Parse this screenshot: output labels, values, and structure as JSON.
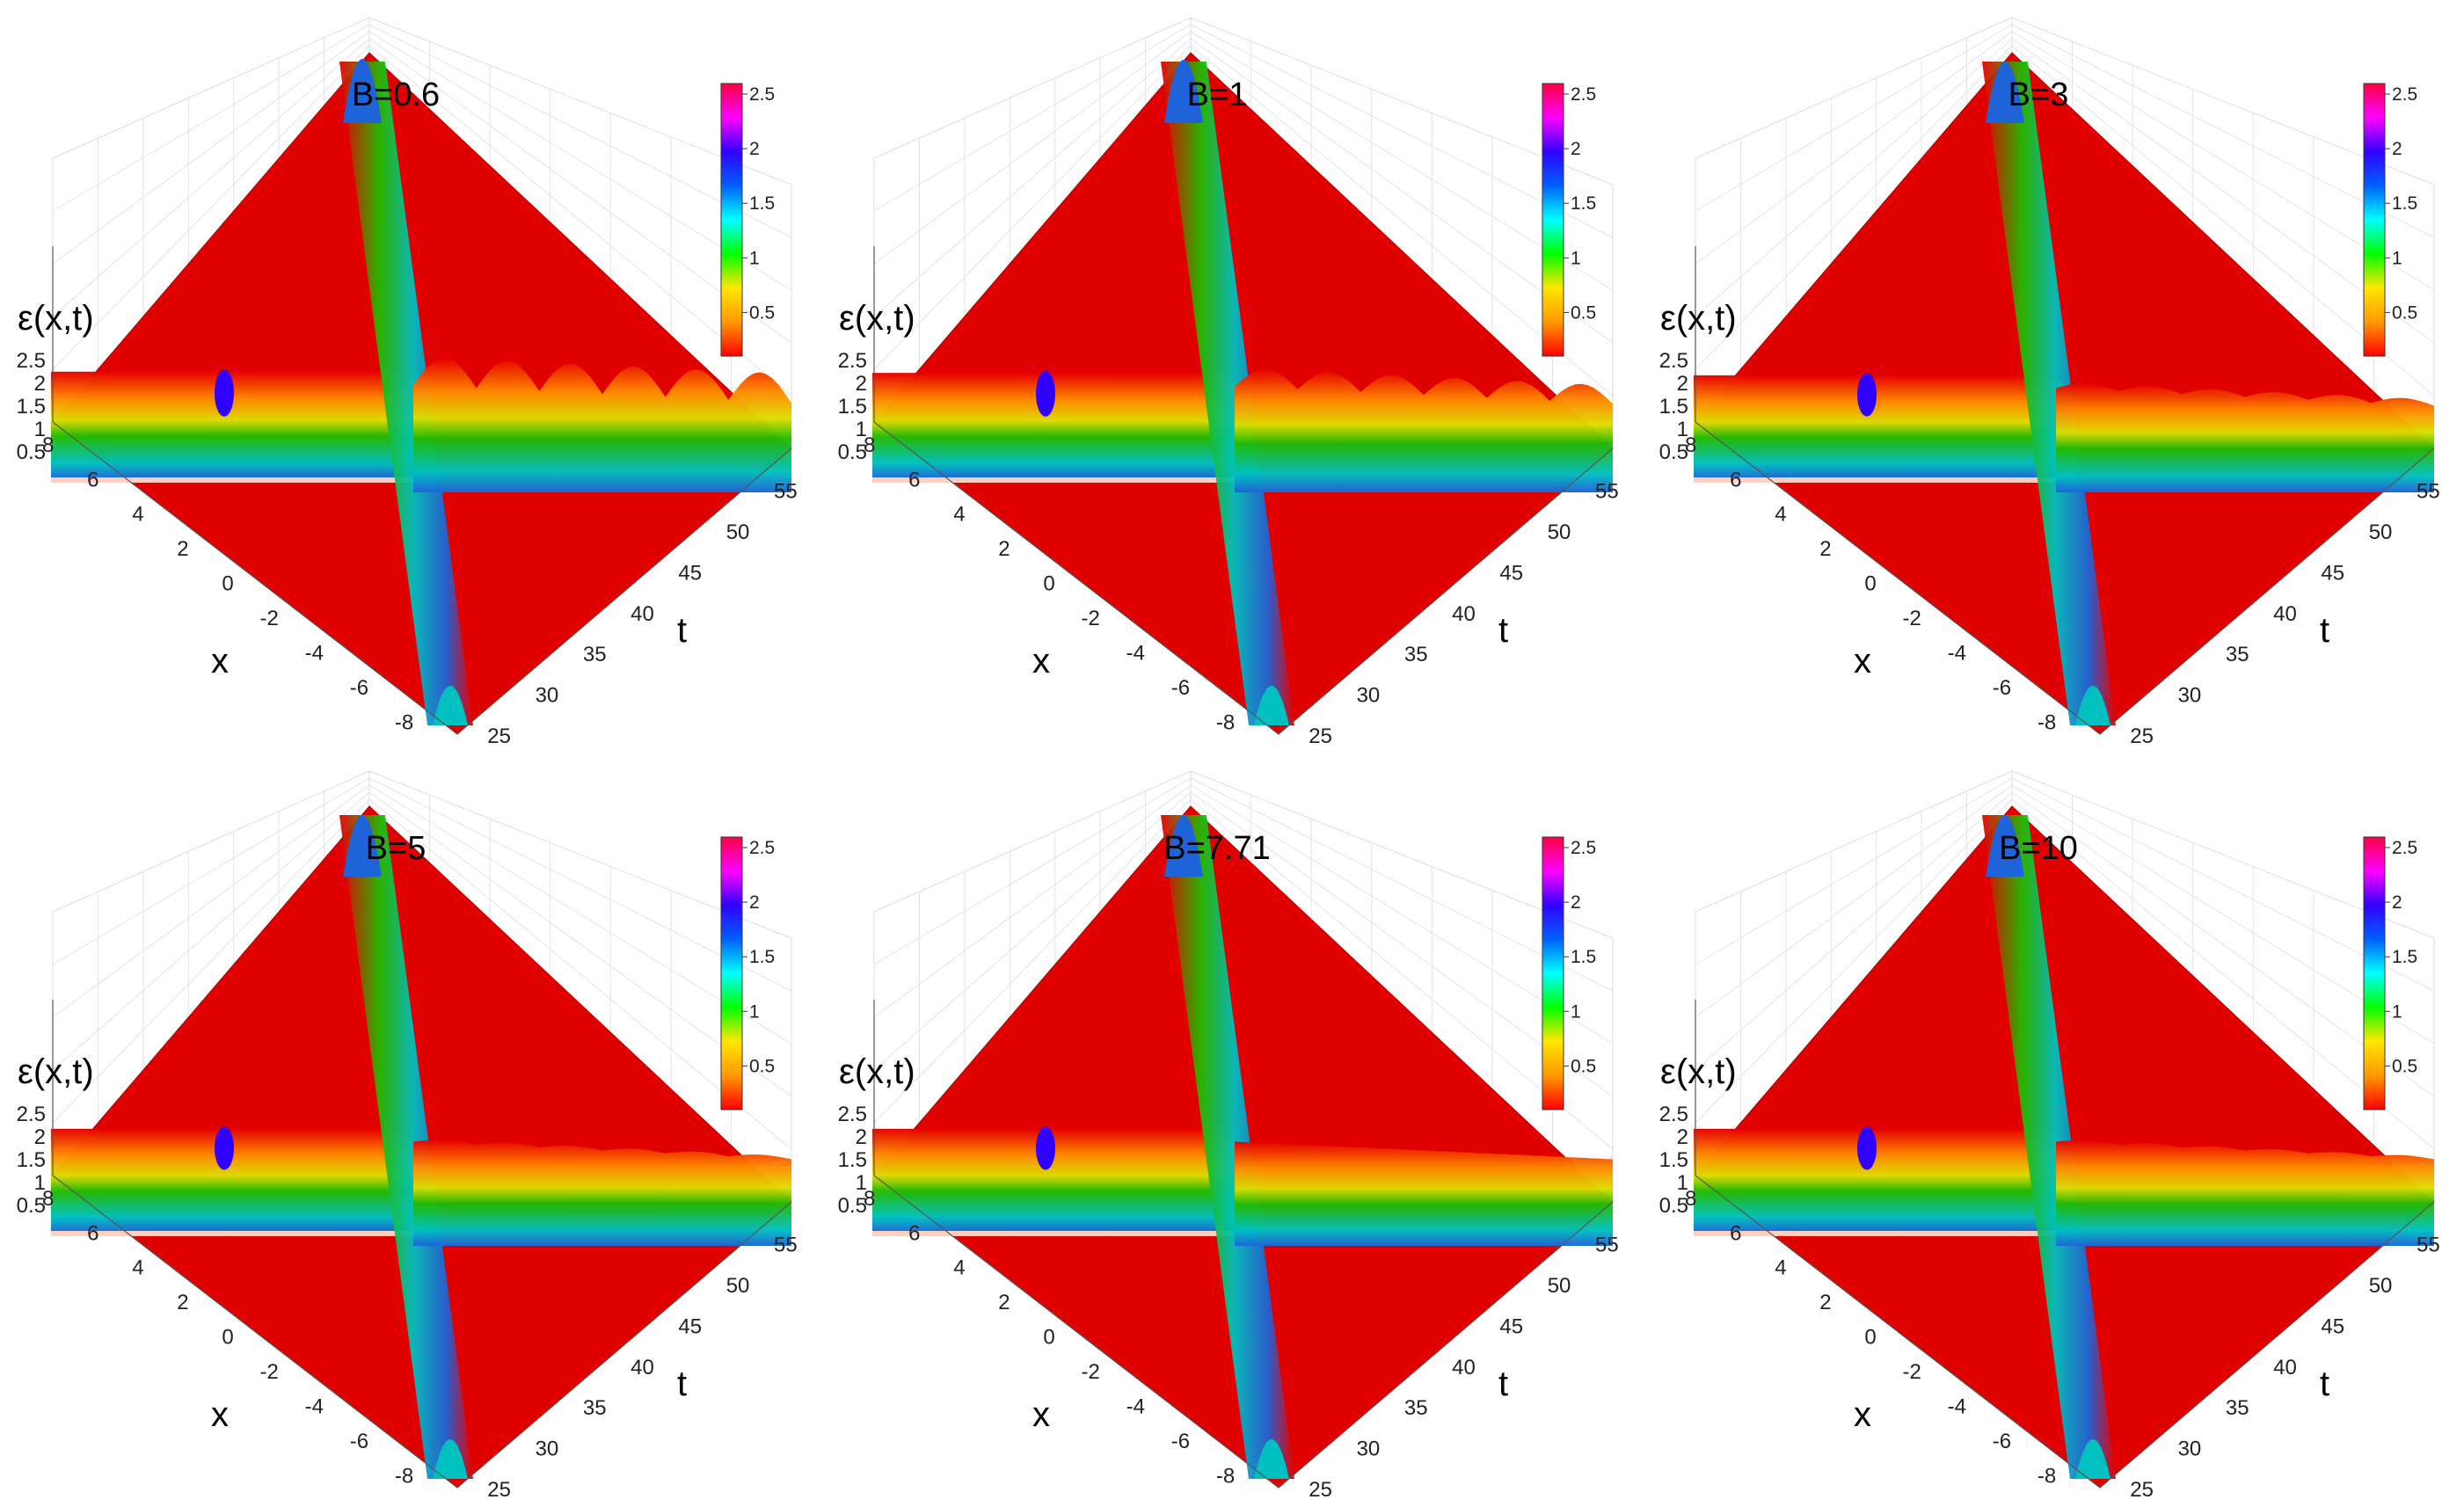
{
  "figure": {
    "colormap": [
      "#ff0000",
      "#ff9900",
      "#ffe600",
      "#00ff00",
      "#00ffff",
      "#0060ff",
      "#3000ff",
      "#ff00ff",
      "#ff0040"
    ],
    "surface_base_color": "#e00000",
    "soliton_colors": [
      "#e60000",
      "#22bb00",
      "#00c0c0",
      "#1e64d8"
    ]
  },
  "chart_data": [
    {
      "type": "surface3d",
      "title": "B=0.6",
      "B": 0.6,
      "zlabel": "ε(x,t)",
      "xlabel": "x",
      "ylabel": "t",
      "x_ticks": [
        "8",
        "6",
        "4",
        "2",
        "0",
        "-2",
        "-4",
        "-6",
        "-8"
      ],
      "t_ticks": [
        "25",
        "30",
        "35",
        "40",
        "45",
        "50",
        "55"
      ],
      "z_ticks": [
        "2.5",
        "2",
        "1.5",
        "1",
        "0.5"
      ],
      "colorbar_ticks": [
        "2.5",
        "2",
        "1.5",
        "1",
        "0.5"
      ],
      "xlim": [
        -8,
        8
      ],
      "tlim": [
        25,
        55
      ],
      "zlim": [
        0,
        2.5
      ],
      "clim": [
        0,
        2.5
      ],
      "peak": 1.9,
      "oscillation": 0.55,
      "grid": true
    },
    {
      "type": "surface3d",
      "title": "B=1",
      "B": 1,
      "zlabel": "ε(x,t)",
      "xlabel": "x",
      "ylabel": "t",
      "x_ticks": [
        "8",
        "6",
        "4",
        "2",
        "0",
        "-2",
        "-4",
        "-6",
        "-8"
      ],
      "t_ticks": [
        "25",
        "30",
        "35",
        "40",
        "45",
        "50",
        "55"
      ],
      "z_ticks": [
        "2.5",
        "2",
        "1.5",
        "1",
        "0.5"
      ],
      "colorbar_ticks": [
        "2.5",
        "2",
        "1.5",
        "1",
        "0.5"
      ],
      "xlim": [
        -8,
        8
      ],
      "tlim": [
        25,
        55
      ],
      "zlim": [
        0,
        2.5
      ],
      "clim": [
        0,
        2.5
      ],
      "peak": 1.85,
      "oscillation": 0.35,
      "grid": true
    },
    {
      "type": "surface3d",
      "title": "B=3",
      "B": 3,
      "zlabel": "ε(x,t)",
      "xlabel": "x",
      "ylabel": "t",
      "x_ticks": [
        "8",
        "6",
        "4",
        "2",
        "0",
        "-2",
        "-4",
        "-6",
        "-8"
      ],
      "t_ticks": [
        "25",
        "30",
        "35",
        "40",
        "45",
        "50",
        "55"
      ],
      "z_ticks": [
        "2.5",
        "2",
        "1.5",
        "1",
        "0.5"
      ],
      "colorbar_ticks": [
        "2.5",
        "2",
        "1.5",
        "1",
        "0.5"
      ],
      "xlim": [
        -8,
        8
      ],
      "tlim": [
        25,
        55
      ],
      "zlim": [
        0,
        2.5
      ],
      "clim": [
        0,
        2.5
      ],
      "peak": 1.75,
      "oscillation": 0.12,
      "grid": true
    },
    {
      "type": "surface3d",
      "title": "B=5",
      "B": 5,
      "zlabel": "ε(x,t)",
      "xlabel": "x",
      "ylabel": "t",
      "x_ticks": [
        "8",
        "6",
        "4",
        "2",
        "0",
        "-2",
        "-4",
        "-6",
        "-8"
      ],
      "t_ticks": [
        "25",
        "30",
        "35",
        "40",
        "45",
        "50",
        "55"
      ],
      "z_ticks": [
        "2.5",
        "2",
        "1.5",
        "1",
        "0.5"
      ],
      "colorbar_ticks": [
        "2.5",
        "2",
        "1.5",
        "1",
        "0.5"
      ],
      "xlim": [
        -8,
        8
      ],
      "tlim": [
        25,
        55
      ],
      "zlim": [
        0,
        2.5
      ],
      "clim": [
        0,
        2.5
      ],
      "peak": 1.75,
      "oscillation": 0.06,
      "grid": true
    },
    {
      "type": "surface3d",
      "title": "B=7.71",
      "B": 7.71,
      "zlabel": "ε(x,t)",
      "xlabel": "x",
      "ylabel": "t",
      "x_ticks": [
        "8",
        "6",
        "4",
        "2",
        "0",
        "-2",
        "-4",
        "-6",
        "-8"
      ],
      "t_ticks": [
        "25",
        "30",
        "35",
        "40",
        "45",
        "50",
        "55"
      ],
      "z_ticks": [
        "2.5",
        "2",
        "1.5",
        "1",
        "0.5"
      ],
      "colorbar_ticks": [
        "2.5",
        "2",
        "1.5",
        "1",
        "0.5"
      ],
      "xlim": [
        -8,
        8
      ],
      "tlim": [
        25,
        55
      ],
      "zlim": [
        0,
        2.5
      ],
      "clim": [
        0,
        2.5
      ],
      "peak": 1.75,
      "oscillation": 0.0,
      "grid": true
    },
    {
      "type": "surface3d",
      "title": "B=10",
      "B": 10,
      "zlabel": "ε(x,t)",
      "xlabel": "x",
      "ylabel": "t",
      "x_ticks": [
        "8",
        "6",
        "4",
        "2",
        "0",
        "-2",
        "-4",
        "-6",
        "-8"
      ],
      "t_ticks": [
        "25",
        "30",
        "35",
        "40",
        "45",
        "50",
        "55"
      ],
      "z_ticks": [
        "2.5",
        "2",
        "1.5",
        "1",
        "0.5"
      ],
      "colorbar_ticks": [
        "2.5",
        "2",
        "1.5",
        "1",
        "0.5"
      ],
      "xlim": [
        -8,
        8
      ],
      "tlim": [
        25,
        55
      ],
      "zlim": [
        0,
        2.5
      ],
      "clim": [
        0,
        2.5
      ],
      "peak": 1.75,
      "oscillation": 0.05,
      "grid": true
    }
  ]
}
